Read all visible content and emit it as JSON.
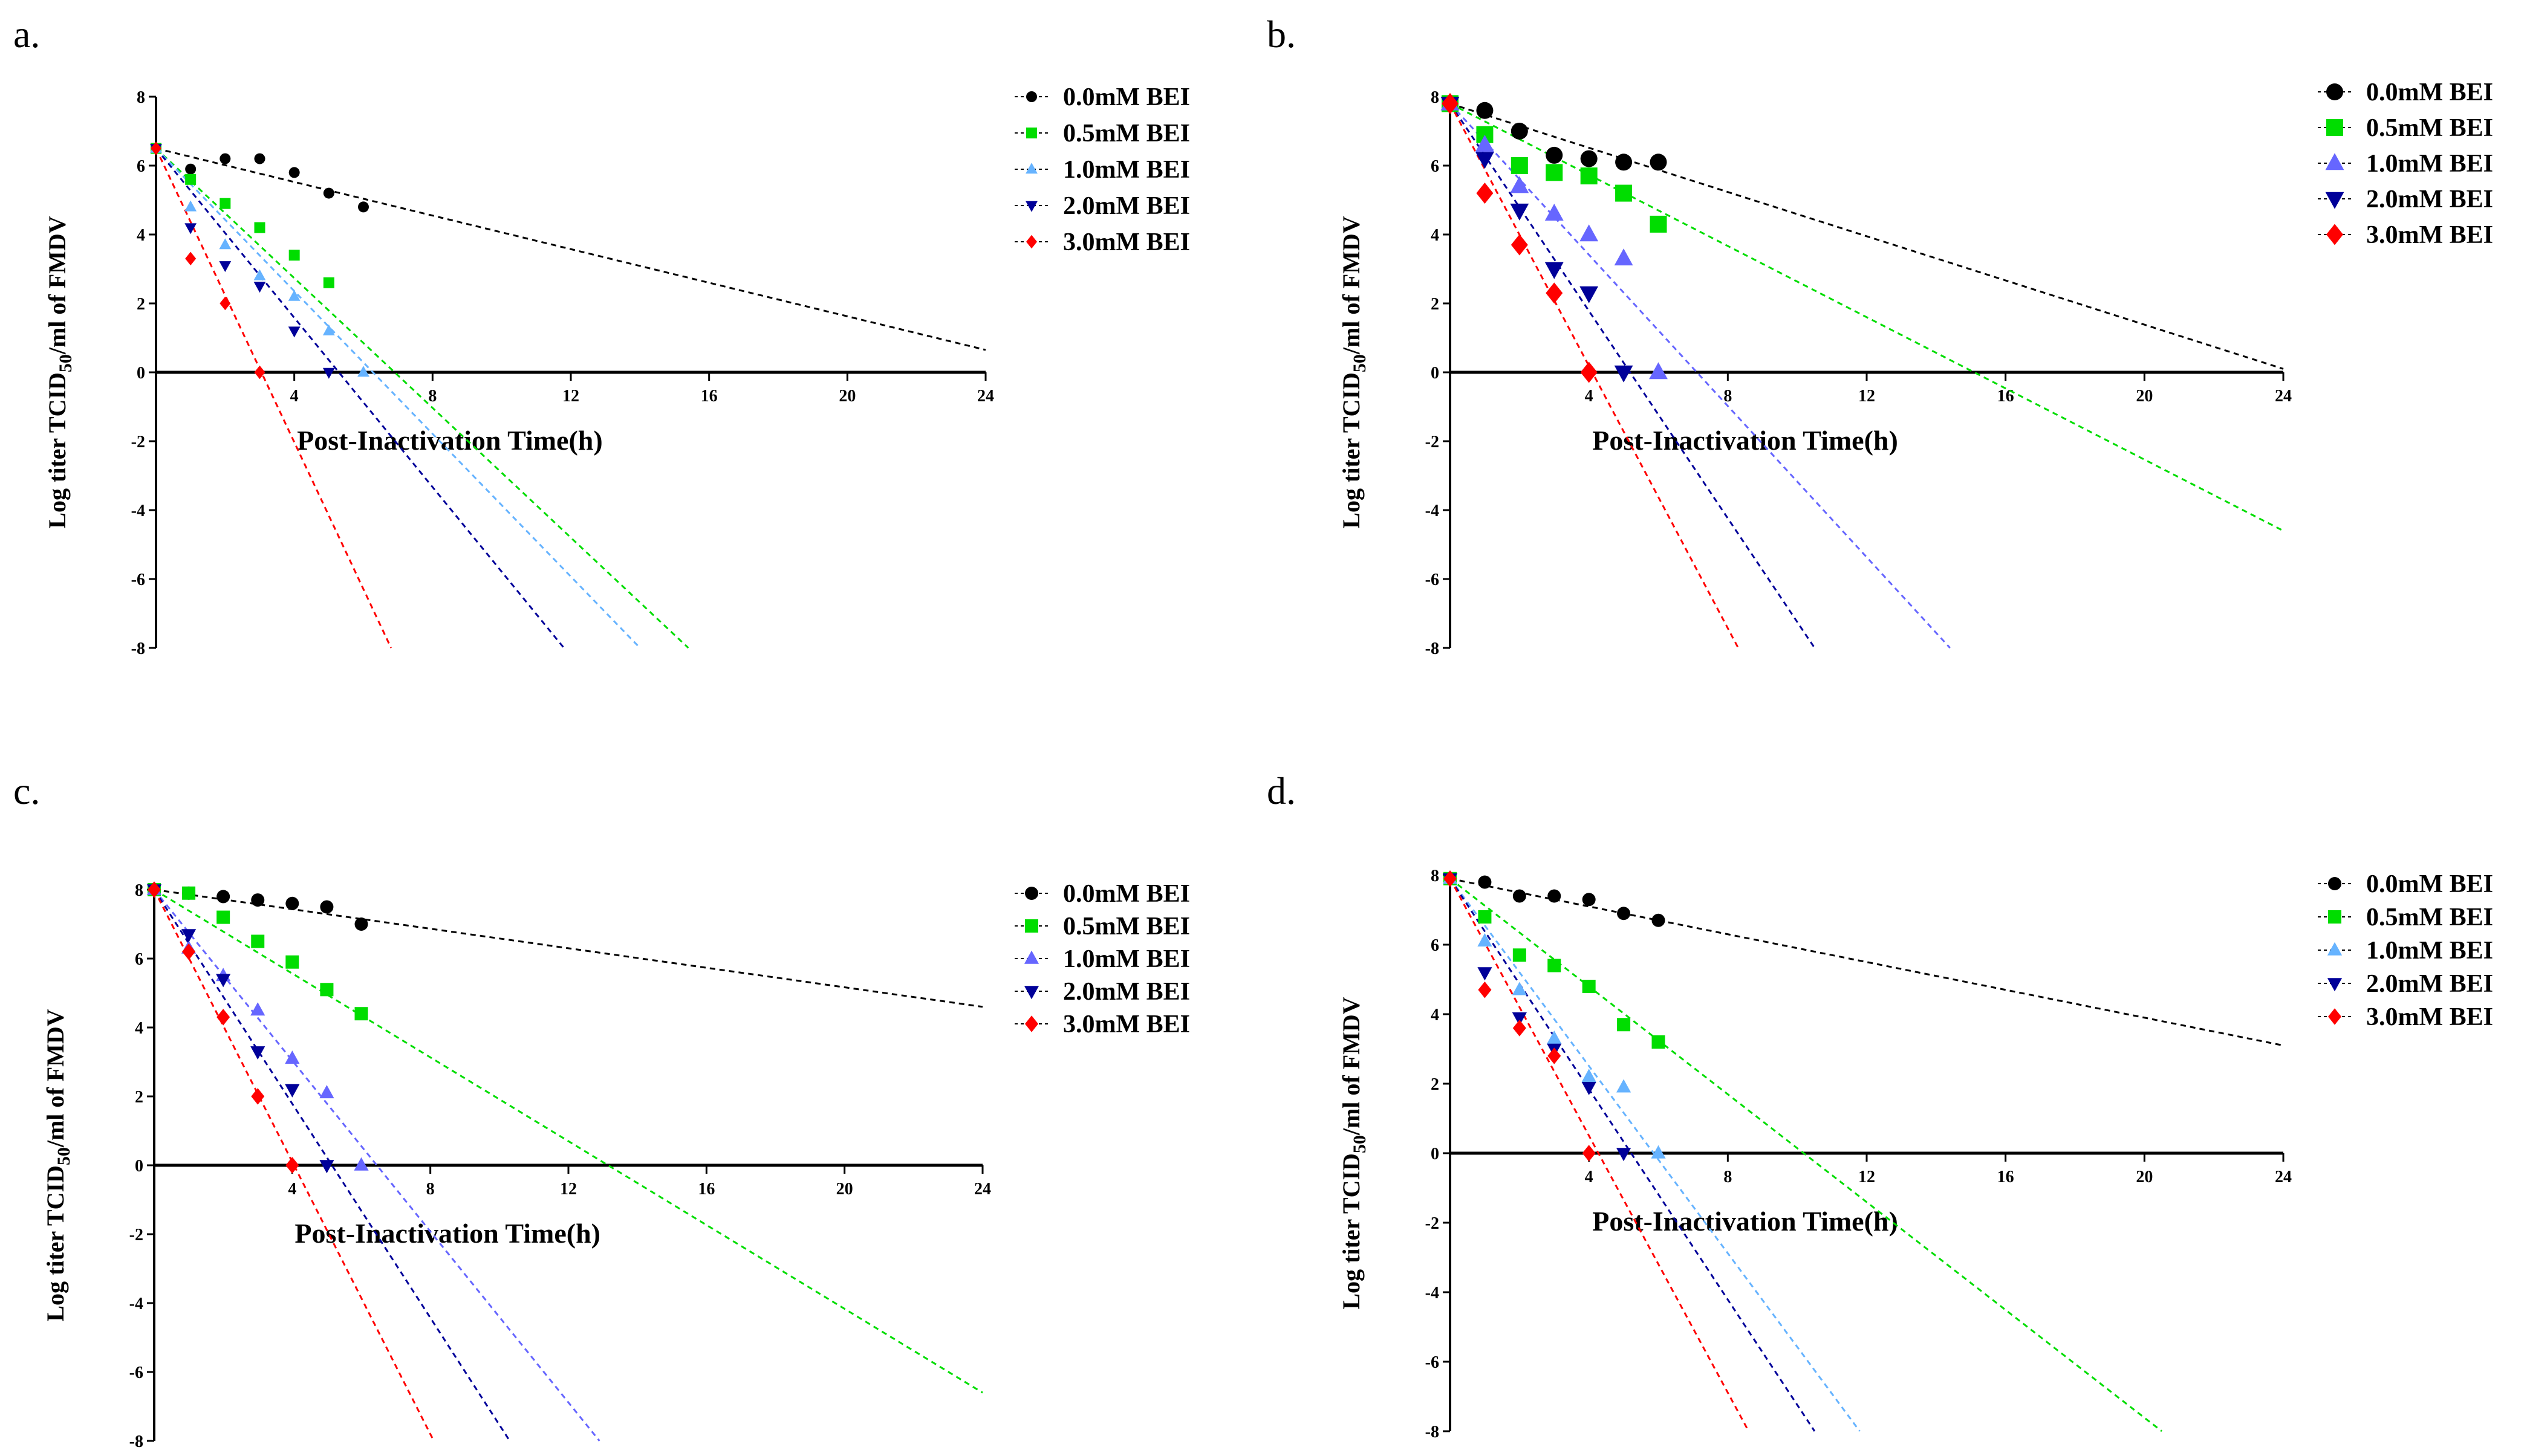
{
  "chart_data": [
    {
      "panel_label": "a.",
      "type": "scatter",
      "xlabel": "Post-Inactivation Time(h)",
      "ylabel": "Log titer TCID50/ml of FMDV",
      "xlim": [
        0,
        24
      ],
      "ylim": [
        -8,
        8
      ],
      "xticks": [
        "4",
        "8",
        "12",
        "16",
        "20",
        "24"
      ],
      "yticks": [
        "8",
        "6",
        "4",
        "2",
        "0",
        "-2",
        "-4",
        "-6",
        "-8"
      ],
      "legend_position": "top-right",
      "marker_size": "small",
      "series": [
        {
          "name": "0.0mM BEI",
          "color": "#000000",
          "marker": "circle",
          "points": [
            [
              0,
              6.5
            ],
            [
              1,
              5.9
            ],
            [
              2,
              6.2
            ],
            [
              3,
              6.2
            ],
            [
              4,
              5.8
            ],
            [
              5,
              5.2
            ],
            [
              6,
              4.8
            ]
          ],
          "fit": [
            [
              0,
              6.5
            ],
            [
              24,
              0.65
            ]
          ]
        },
        {
          "name": "0.5mM BEI",
          "color": "#00dd00",
          "marker": "square",
          "points": [
            [
              0,
              6.5
            ],
            [
              1,
              5.6
            ],
            [
              2,
              4.9
            ],
            [
              3,
              4.2
            ],
            [
              4,
              3.4
            ],
            [
              5,
              2.6
            ]
          ],
          "fit": [
            [
              0,
              6.5
            ],
            [
              15.4,
              -8
            ]
          ]
        },
        {
          "name": "1.0mM BEI",
          "color": "#66b3ff",
          "marker": "triangle-up",
          "points": [
            [
              0,
              6.5
            ],
            [
              1,
              4.8
            ],
            [
              2,
              3.7
            ],
            [
              3,
              2.8
            ],
            [
              4,
              2.2
            ],
            [
              5,
              1.2
            ],
            [
              6,
              0
            ]
          ],
          "fit": [
            [
              0,
              6.5
            ],
            [
              14.0,
              -8
            ]
          ]
        },
        {
          "name": "2.0mM BEI",
          "color": "#000099",
          "marker": "triangle-down",
          "points": [
            [
              0,
              6.5
            ],
            [
              1,
              4.2
            ],
            [
              2,
              3.1
            ],
            [
              3,
              2.5
            ],
            [
              4,
              1.2
            ],
            [
              5,
              0
            ]
          ],
          "fit": [
            [
              0,
              6.5
            ],
            [
              11.8,
              -8
            ]
          ]
        },
        {
          "name": "3.0mM BEI",
          "color": "#ff0000",
          "marker": "diamond",
          "points": [
            [
              0,
              6.5
            ],
            [
              1,
              3.3
            ],
            [
              2,
              2.0
            ],
            [
              3,
              0
            ]
          ],
          "fit": [
            [
              0,
              6.5
            ],
            [
              6.8,
              -8
            ]
          ]
        }
      ]
    },
    {
      "panel_label": "b.",
      "type": "scatter",
      "xlabel": "Post-Inactivation Time(h)",
      "ylabel": "Log titer TCID50/ml of FMDV",
      "xlim": [
        0,
        24
      ],
      "ylim": [
        -8,
        8
      ],
      "xticks": [
        "4",
        "8",
        "12",
        "16",
        "20",
        "24"
      ],
      "yticks": [
        "8",
        "6",
        "4",
        "2",
        "0",
        "-2",
        "-4",
        "-6",
        "-8"
      ],
      "legend_position": "top-right",
      "marker_size": "large",
      "series": [
        {
          "name": "0.0mM BEI",
          "color": "#000000",
          "marker": "circle",
          "points": [
            [
              0,
              7.8
            ],
            [
              1,
              7.6
            ],
            [
              2,
              7.0
            ],
            [
              3,
              6.3
            ],
            [
              4,
              6.2
            ],
            [
              5,
              6.1
            ],
            [
              6,
              6.1
            ]
          ],
          "fit": [
            [
              0,
              7.8
            ],
            [
              24,
              0.1
            ]
          ]
        },
        {
          "name": "0.5mM BEI",
          "color": "#00dd00",
          "marker": "square",
          "points": [
            [
              0,
              7.8
            ],
            [
              1,
              6.9
            ],
            [
              2,
              6.0
            ],
            [
              3,
              5.8
            ],
            [
              4,
              5.7
            ],
            [
              5,
              5.2
            ],
            [
              6,
              4.3
            ]
          ],
          "fit": [
            [
              0,
              7.8
            ],
            [
              24,
              -4.6
            ]
          ]
        },
        {
          "name": "1.0mM BEI",
          "color": "#6666ff",
          "marker": "triangle-up",
          "points": [
            [
              0,
              7.8
            ],
            [
              1,
              6.6
            ],
            [
              2,
              5.4
            ],
            [
              3,
              4.6
            ],
            [
              4,
              4.0
            ],
            [
              5,
              3.3
            ],
            [
              6,
              0
            ]
          ],
          "fit": [
            [
              0,
              7.8
            ],
            [
              14.4,
              -8
            ]
          ]
        },
        {
          "name": "2.0mM BEI",
          "color": "#000099",
          "marker": "triangle-down",
          "points": [
            [
              0,
              7.8
            ],
            [
              1,
              6.2
            ],
            [
              2,
              4.7
            ],
            [
              3,
              3.0
            ],
            [
              4,
              2.3
            ],
            [
              5,
              0
            ]
          ],
          "fit": [
            [
              0,
              7.8
            ],
            [
              10.5,
              -8
            ]
          ]
        },
        {
          "name": "3.0mM BEI",
          "color": "#ff0000",
          "marker": "diamond",
          "points": [
            [
              0,
              7.8
            ],
            [
              1,
              5.2
            ],
            [
              2,
              3.7
            ],
            [
              3,
              2.3
            ],
            [
              4,
              0
            ]
          ],
          "fit": [
            [
              0,
              7.8
            ],
            [
              8.3,
              -8
            ]
          ]
        }
      ]
    },
    {
      "panel_label": "c.",
      "type": "scatter",
      "xlabel": "Post-Inactivation Time(h)",
      "ylabel": "Log titer TCID50/ml of FMDV",
      "xlim": [
        0,
        24
      ],
      "ylim": [
        -8,
        8
      ],
      "xticks": [
        "4",
        "8",
        "12",
        "16",
        "20",
        "24"
      ],
      "yticks": [
        "8",
        "6",
        "4",
        "2",
        "0",
        "-2",
        "-4",
        "-6",
        "-8"
      ],
      "legend_position": "top-right",
      "marker_size": "medium",
      "series": [
        {
          "name": "0.0mM BEI",
          "color": "#000000",
          "marker": "circle",
          "points": [
            [
              0,
              8.0
            ],
            [
              1,
              7.9
            ],
            [
              2,
              7.8
            ],
            [
              3,
              7.7
            ],
            [
              4,
              7.6
            ],
            [
              5,
              7.5
            ],
            [
              6,
              7.0
            ]
          ],
          "fit": [
            [
              0,
              8.0
            ],
            [
              24,
              4.6
            ]
          ]
        },
        {
          "name": "0.5mM BEI",
          "color": "#00dd00",
          "marker": "square",
          "points": [
            [
              0,
              8.0
            ],
            [
              1,
              7.9
            ],
            [
              2,
              7.2
            ],
            [
              3,
              6.5
            ],
            [
              4,
              5.9
            ],
            [
              5,
              5.1
            ],
            [
              6,
              4.4
            ]
          ],
          "fit": [
            [
              0,
              8.0
            ],
            [
              24,
              -6.6
            ]
          ]
        },
        {
          "name": "1.0mM BEI",
          "color": "#6666ff",
          "marker": "triangle-up",
          "points": [
            [
              0,
              8.0
            ],
            [
              1,
              6.3
            ],
            [
              2,
              5.5
            ],
            [
              3,
              4.5
            ],
            [
              4,
              3.1
            ],
            [
              5,
              2.1
            ],
            [
              6,
              0
            ]
          ],
          "fit": [
            [
              0,
              8.0
            ],
            [
              12.9,
              -8
            ]
          ]
        },
        {
          "name": "2.0mM BEI",
          "color": "#000099",
          "marker": "triangle-down",
          "points": [
            [
              0,
              8.0
            ],
            [
              1,
              6.7
            ],
            [
              2,
              5.4
            ],
            [
              3,
              3.3
            ],
            [
              4,
              2.2
            ],
            [
              5,
              0
            ]
          ],
          "fit": [
            [
              0,
              8.0
            ],
            [
              10.3,
              -8
            ]
          ]
        },
        {
          "name": "3.0mM BEI",
          "color": "#ff0000",
          "marker": "diamond",
          "points": [
            [
              0,
              8.0
            ],
            [
              1,
              6.2
            ],
            [
              2,
              4.3
            ],
            [
              3,
              2.0
            ],
            [
              4,
              0
            ]
          ],
          "fit": [
            [
              0,
              8.0
            ],
            [
              8.1,
              -8
            ]
          ]
        }
      ]
    },
    {
      "panel_label": "d.",
      "type": "scatter",
      "xlabel": "Post-Inactivation Time(h)",
      "ylabel": "Log titer TCID50/ml of FMDV",
      "xlim": [
        0,
        24
      ],
      "ylim": [
        -8,
        8
      ],
      "xticks": [
        "4",
        "8",
        "12",
        "16",
        "20",
        "24"
      ],
      "yticks": [
        "8",
        "6",
        "4",
        "2",
        "0",
        "-2",
        "-4",
        "-6",
        "-8"
      ],
      "legend_position": "top-right",
      "marker_size": "medium",
      "series": [
        {
          "name": "0.0mM BEI",
          "color": "#000000",
          "marker": "circle",
          "points": [
            [
              0,
              7.9
            ],
            [
              1,
              7.8
            ],
            [
              2,
              7.4
            ],
            [
              3,
              7.4
            ],
            [
              4,
              7.3
            ],
            [
              5,
              6.9
            ],
            [
              6,
              6.7
            ]
          ],
          "fit": [
            [
              0,
              7.9
            ],
            [
              24,
              3.1
            ]
          ]
        },
        {
          "name": "0.5mM BEI",
          "color": "#00dd00",
          "marker": "square",
          "points": [
            [
              0,
              7.9
            ],
            [
              1,
              6.8
            ],
            [
              2,
              5.7
            ],
            [
              3,
              5.4
            ],
            [
              4,
              4.8
            ],
            [
              5,
              3.7
            ],
            [
              6,
              3.2
            ]
          ],
          "fit": [
            [
              0,
              7.9
            ],
            [
              20.5,
              -8
            ]
          ]
        },
        {
          "name": "1.0mM BEI",
          "color": "#66b3ff",
          "marker": "triangle-up",
          "points": [
            [
              0,
              7.9
            ],
            [
              1,
              6.1
            ],
            [
              2,
              4.7
            ],
            [
              3,
              3.3
            ],
            [
              4,
              2.2
            ],
            [
              5,
              1.9
            ],
            [
              6,
              0
            ]
          ],
          "fit": [
            [
              0,
              7.9
            ],
            [
              11.8,
              -8
            ]
          ]
        },
        {
          "name": "2.0mM BEI",
          "color": "#000099",
          "marker": "triangle-down",
          "points": [
            [
              0,
              7.9
            ],
            [
              1,
              5.2
            ],
            [
              2,
              3.9
            ],
            [
              3,
              3.0
            ],
            [
              4,
              1.9
            ],
            [
              5,
              0
            ]
          ],
          "fit": [
            [
              0,
              7.9
            ],
            [
              10.5,
              -8
            ]
          ]
        },
        {
          "name": "3.0mM BEI",
          "color": "#ff0000",
          "marker": "diamond",
          "points": [
            [
              0,
              7.9
            ],
            [
              1,
              4.7
            ],
            [
              2,
              3.6
            ],
            [
              3,
              2.8
            ],
            [
              4,
              0
            ]
          ],
          "fit": [
            [
              0,
              7.9
            ],
            [
              8.6,
              -8
            ]
          ]
        }
      ]
    }
  ]
}
